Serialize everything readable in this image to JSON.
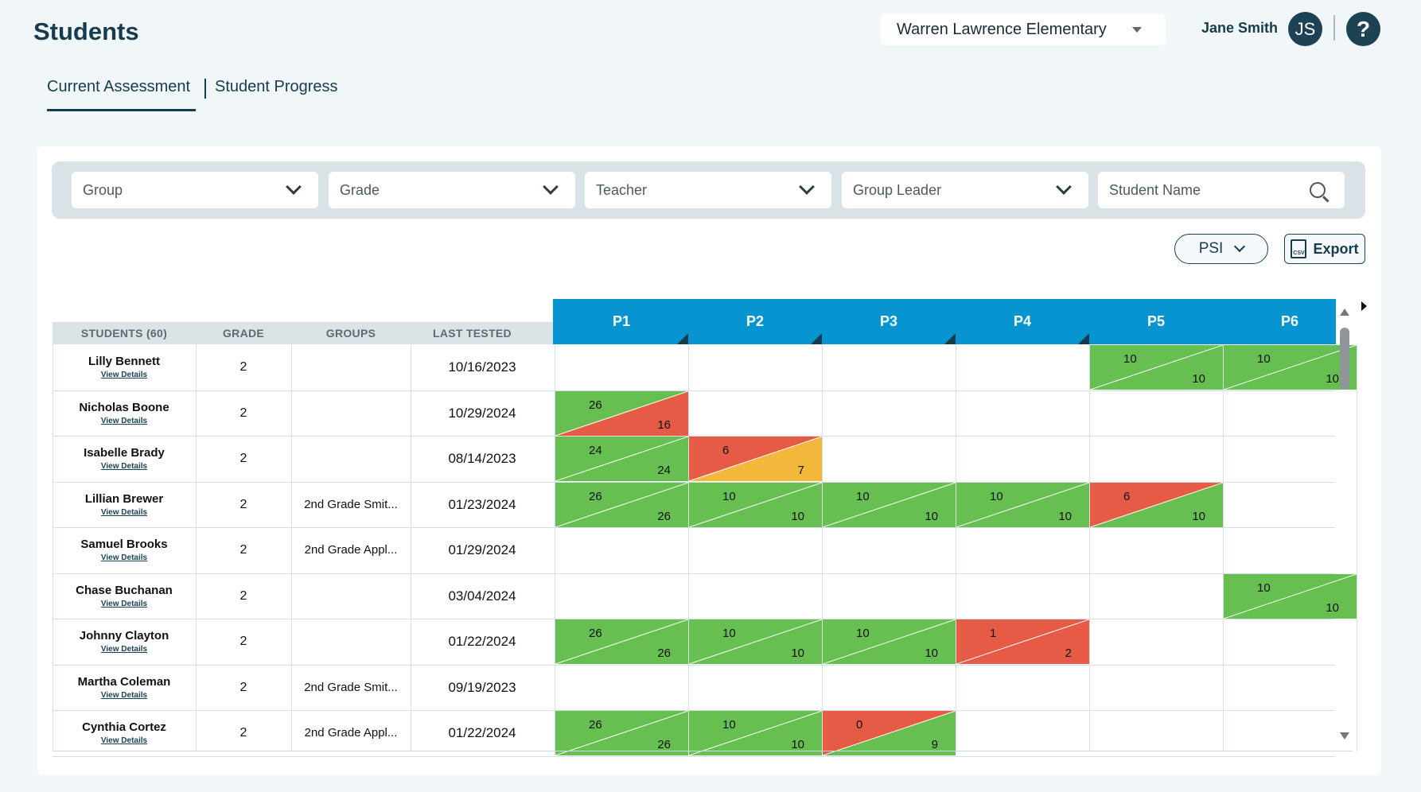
{
  "header": {
    "title": "Students",
    "school": "Warren Lawrence Elementary",
    "user_name": "Jane Smith",
    "user_initials": "JS",
    "help_symbol": "?"
  },
  "tabs": [
    {
      "label": "Current Assessment",
      "active": true
    },
    {
      "label": "Student Progress",
      "active": false
    }
  ],
  "filters": {
    "group": "Group",
    "grade": "Grade",
    "teacher": "Teacher",
    "group_leader": "Group Leader",
    "student_name_placeholder": "Student Name"
  },
  "toolbar": {
    "psi_label": "PSI",
    "export_label": "Export",
    "csv_label": "CSV"
  },
  "table": {
    "headers": {
      "students": "STUDENTS (60)",
      "grade": "GRADE",
      "groups": "GROUPS",
      "last_tested": "LAST TESTED"
    },
    "periods": [
      "P1",
      "P2",
      "P3",
      "P4",
      "P5",
      "P6"
    ],
    "view_details_label": "View Details",
    "rows": [
      {
        "name": "Lilly Bennett",
        "grade": "2",
        "groups": "",
        "last_tested": "10/16/2023",
        "scores": [
          null,
          null,
          null,
          null,
          {
            "top": "10",
            "bottom": "10",
            "top_color": "green",
            "bottom_color": "green"
          },
          {
            "top": "10",
            "bottom": "10",
            "top_color": "green",
            "bottom_color": "green"
          }
        ]
      },
      {
        "name": "Nicholas Boone",
        "grade": "2",
        "groups": "",
        "last_tested": "10/29/2024",
        "scores": [
          {
            "top": "26",
            "bottom": "16",
            "top_color": "green",
            "bottom_color": "red"
          },
          null,
          null,
          null,
          null,
          null
        ]
      },
      {
        "name": "Isabelle Brady",
        "grade": "2",
        "groups": "",
        "last_tested": "08/14/2023",
        "scores": [
          {
            "top": "24",
            "bottom": "24",
            "top_color": "green",
            "bottom_color": "green"
          },
          {
            "top": "6",
            "bottom": "7",
            "top_color": "red",
            "bottom_color": "yellow"
          },
          null,
          null,
          null,
          null
        ]
      },
      {
        "name": "Lillian Brewer",
        "grade": "2",
        "groups": "2nd Grade Smit...",
        "last_tested": "01/23/2024",
        "scores": [
          {
            "top": "26",
            "bottom": "26",
            "top_color": "green",
            "bottom_color": "green"
          },
          {
            "top": "10",
            "bottom": "10",
            "top_color": "green",
            "bottom_color": "green"
          },
          {
            "top": "10",
            "bottom": "10",
            "top_color": "green",
            "bottom_color": "green"
          },
          {
            "top": "10",
            "bottom": "10",
            "top_color": "green",
            "bottom_color": "green"
          },
          {
            "top": "6",
            "bottom": "10",
            "top_color": "red",
            "bottom_color": "green"
          },
          null
        ]
      },
      {
        "name": "Samuel Brooks",
        "grade": "2",
        "groups": "2nd Grade Appl...",
        "last_tested": "01/29/2024",
        "scores": [
          null,
          null,
          null,
          null,
          null,
          null
        ]
      },
      {
        "name": "Chase Buchanan",
        "grade": "2",
        "groups": "",
        "last_tested": "03/04/2024",
        "scores": [
          null,
          null,
          null,
          null,
          null,
          {
            "top": "10",
            "bottom": "10",
            "top_color": "green",
            "bottom_color": "green"
          }
        ]
      },
      {
        "name": "Johnny Clayton",
        "grade": "2",
        "groups": "",
        "last_tested": "01/22/2024",
        "scores": [
          {
            "top": "26",
            "bottom": "26",
            "top_color": "green",
            "bottom_color": "green"
          },
          {
            "top": "10",
            "bottom": "10",
            "top_color": "green",
            "bottom_color": "green"
          },
          {
            "top": "10",
            "bottom": "10",
            "top_color": "green",
            "bottom_color": "green"
          },
          {
            "top": "1",
            "bottom": "2",
            "top_color": "red",
            "bottom_color": "red"
          },
          null,
          null
        ]
      },
      {
        "name": "Martha Coleman",
        "grade": "2",
        "groups": "2nd Grade Smit...",
        "last_tested": "09/19/2023",
        "scores": [
          null,
          null,
          null,
          null,
          null,
          null
        ]
      },
      {
        "name": "Cynthia Cortez",
        "grade": "2",
        "groups": "2nd Grade Appl...",
        "last_tested": "01/22/2024",
        "scores": [
          {
            "top": "26",
            "bottom": "26",
            "top_color": "green",
            "bottom_color": "green"
          },
          {
            "top": "10",
            "bottom": "10",
            "top_color": "green",
            "bottom_color": "green"
          },
          {
            "top": "0",
            "bottom": "9",
            "top_color": "red",
            "bottom_color": "green"
          },
          null,
          null,
          null
        ]
      }
    ]
  },
  "colors": {
    "green": "#66bf50",
    "red": "#e65b45",
    "yellow": "#f3b73c",
    "header_blue": "#0794d0",
    "brand_dark": "#163c4d"
  }
}
